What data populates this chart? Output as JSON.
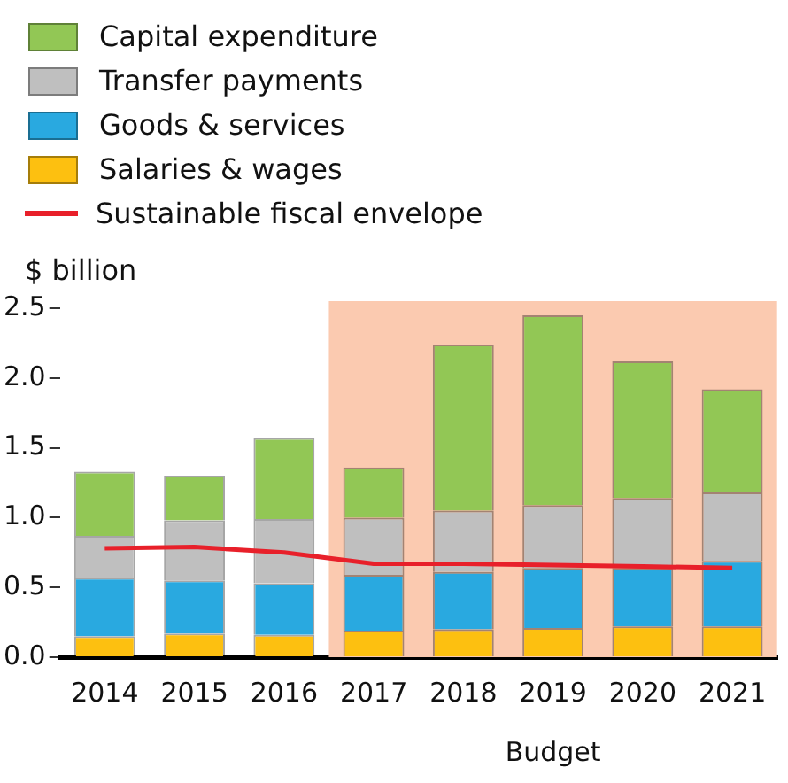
{
  "chart_data": {
    "type": "bar",
    "stacked": true,
    "ylabel": "$ billion",
    "categories": [
      "2014",
      "2015",
      "2016",
      "2017",
      "2018",
      "2019",
      "2020",
      "2021"
    ],
    "series": [
      {
        "name": "Salaries & wages",
        "color": "#fdc010",
        "values": [
          0.15,
          0.17,
          0.16,
          0.19,
          0.2,
          0.21,
          0.22,
          0.22
        ]
      },
      {
        "name": "Goods & services",
        "color": "#29a9e0",
        "values": [
          0.42,
          0.38,
          0.37,
          0.4,
          0.41,
          0.43,
          0.42,
          0.47
        ]
      },
      {
        "name": "Transfer payments",
        "color": "#bfbfbf",
        "values": [
          0.3,
          0.43,
          0.46,
          0.41,
          0.44,
          0.45,
          0.5,
          0.49
        ]
      },
      {
        "name": "Capital expenditure",
        "color": "#92c755",
        "values": [
          0.46,
          0.32,
          0.58,
          0.36,
          1.19,
          1.36,
          0.98,
          0.74
        ]
      },
      {
        "name": "Sustainable fiscal envelope",
        "type": "line",
        "color": "#e8202a",
        "values": [
          0.78,
          0.79,
          0.75,
          0.67,
          0.67,
          0.66,
          0.65,
          0.64
        ]
      }
    ],
    "ylim": [
      0,
      2.5
    ],
    "yticks": [
      {
        "value": 0,
        "label": "0.0"
      },
      {
        "value": 0.5,
        "label": "0.5"
      },
      {
        "value": 1,
        "label": "1.0"
      },
      {
        "value": 1.5,
        "label": "1.5"
      },
      {
        "value": 2,
        "label": "2.0"
      },
      {
        "value": 2.5,
        "label": "2.5"
      }
    ],
    "bands": [
      {
        "axis": "x",
        "from": "2017",
        "to": "2021",
        "label": "Budget",
        "color": "#fbcab0"
      }
    ],
    "grid": false,
    "legend": "top left",
    "marker": "none",
    "line_style": "solid"
  }
}
